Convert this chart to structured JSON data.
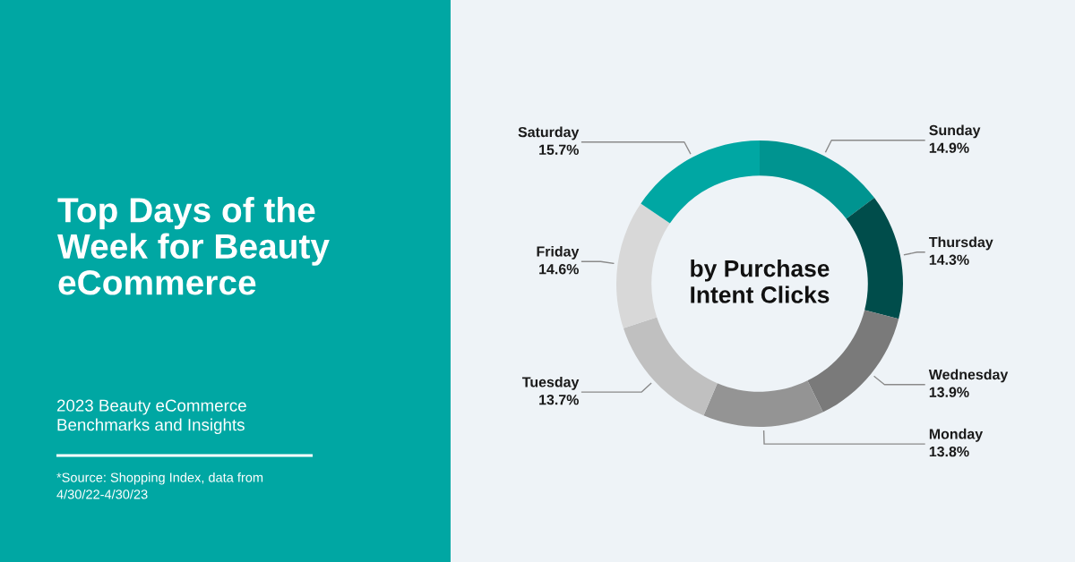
{
  "chart_data": {
    "type": "donut",
    "title": "Top Days of the\nWeek for Beauty\neCommerce",
    "subtitle": "2023 Beauty eCommerce\nBenchmarks and Insights",
    "categories": [
      "Sunday",
      "Thursday",
      "Wednesday",
      "Monday",
      "Tuesday",
      "Friday",
      "Saturday"
    ],
    "values": [
      14.9,
      14.3,
      13.9,
      13.8,
      13.7,
      14.6,
      15.7
    ],
    "value_labels": [
      "14.9%",
      "14.3%",
      "13.9%",
      "13.8%",
      "13.7%",
      "14.6%",
      "15.7%"
    ],
    "colors": [
      "#009490",
      "#004d4b",
      "#7a7a7a",
      "#949494",
      "#c0c0c0",
      "#d8d8d8",
      "#00a7a3"
    ],
    "annotations": [
      "by Purchase\nIntent Clicks",
      "*Source: Shopping Index, data from\n4/30/22-4/30/23"
    ]
  }
}
